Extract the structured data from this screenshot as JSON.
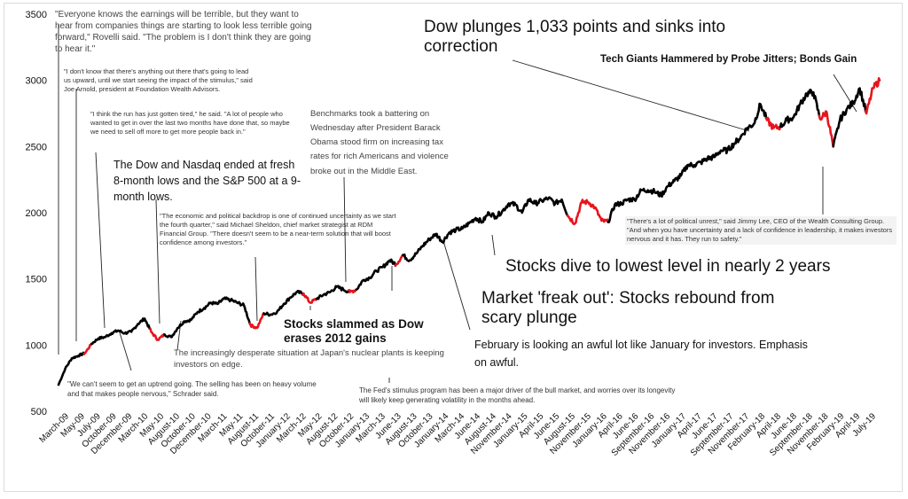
{
  "chart_data": {
    "type": "line",
    "title": "",
    "xlabel": "",
    "ylabel": "",
    "ylim": [
      500,
      3500
    ],
    "yticks": [
      500,
      1000,
      1500,
      2000,
      2500,
      3000,
      3500
    ],
    "x_tick_labels": [
      "March-09",
      "May-09",
      "July-09",
      "October-09",
      "December-09",
      "March-10",
      "May-10",
      "August-10",
      "October-10",
      "December-10",
      "March-11",
      "May-11",
      "August-11",
      "October-11",
      "January-12",
      "March-12",
      "May-12",
      "August-12",
      "October-12",
      "January-13",
      "March-13",
      "June-13",
      "August-13",
      "October-13",
      "January-14",
      "March-14",
      "June-14",
      "August-14",
      "November-14",
      "January-15",
      "April-15",
      "June-15",
      "August-15",
      "November-15",
      "January-16",
      "April-16",
      "June-16",
      "September-16",
      "November-16",
      "January-17",
      "April-17",
      "June-17",
      "September-17",
      "November-17",
      "February-18",
      "April-18",
      "June-18",
      "September-18",
      "November-18",
      "February-19",
      "April-19",
      "July-19"
    ],
    "series": [
      {
        "color": "#000000",
        "highlight_color": "#e8141c",
        "points": [
          [
            "2009-03",
            700
          ],
          [
            "2009-04",
            820
          ],
          [
            "2009-05",
            900
          ],
          [
            "2009-06",
            920
          ],
          [
            "2009-07",
            940
          ],
          [
            "2009-08",
            1010
          ],
          [
            "2009-09",
            1050
          ],
          [
            "2009-10",
            1060
          ],
          [
            "2009-11",
            1090
          ],
          [
            "2009-12",
            1110
          ],
          [
            "2010-01",
            1090
          ],
          [
            "2010-02",
            1100
          ],
          [
            "2010-03",
            1160
          ],
          [
            "2010-04",
            1200
          ],
          [
            "2010-05",
            1100
          ],
          [
            "2010-06",
            1040
          ],
          [
            "2010-07",
            1080
          ],
          [
            "2010-08",
            1060
          ],
          [
            "2010-09",
            1130
          ],
          [
            "2010-10",
            1180
          ],
          [
            "2010-11",
            1190
          ],
          [
            "2010-12",
            1250
          ],
          [
            "2011-01",
            1280
          ],
          [
            "2011-02",
            1320
          ],
          [
            "2011-03",
            1310
          ],
          [
            "2011-04",
            1350
          ],
          [
            "2011-05",
            1340
          ],
          [
            "2011-06",
            1320
          ],
          [
            "2011-07",
            1300
          ],
          [
            "2011-08",
            1150
          ],
          [
            "2011-09",
            1130
          ],
          [
            "2011-10",
            1240
          ],
          [
            "2011-11",
            1230
          ],
          [
            "2011-12",
            1250
          ],
          [
            "2012-01",
            1310
          ],
          [
            "2012-02",
            1360
          ],
          [
            "2012-03",
            1400
          ],
          [
            "2012-04",
            1390
          ],
          [
            "2012-05",
            1320
          ],
          [
            "2012-06",
            1350
          ],
          [
            "2012-07",
            1380
          ],
          [
            "2012-08",
            1400
          ],
          [
            "2012-09",
            1440
          ],
          [
            "2012-10",
            1420
          ],
          [
            "2012-11",
            1400
          ],
          [
            "2012-12",
            1420
          ],
          [
            "2013-01",
            1490
          ],
          [
            "2013-02",
            1510
          ],
          [
            "2013-03",
            1560
          ],
          [
            "2013-04",
            1590
          ],
          [
            "2013-05",
            1640
          ],
          [
            "2013-06",
            1610
          ],
          [
            "2013-07",
            1680
          ],
          [
            "2013-08",
            1640
          ],
          [
            "2013-09",
            1690
          ],
          [
            "2013-10",
            1750
          ],
          [
            "2013-11",
            1800
          ],
          [
            "2013-12",
            1840
          ],
          [
            "2014-01",
            1780
          ],
          [
            "2014-02",
            1850
          ],
          [
            "2014-03",
            1870
          ],
          [
            "2014-04",
            1880
          ],
          [
            "2014-05",
            1920
          ],
          [
            "2014-06",
            1960
          ],
          [
            "2014-07",
            1930
          ],
          [
            "2014-08",
            2000
          ],
          [
            "2014-09",
            1970
          ],
          [
            "2014-10",
            2010
          ],
          [
            "2014-11",
            2070
          ],
          [
            "2014-12",
            2060
          ],
          [
            "2015-01",
            2000
          ],
          [
            "2015-02",
            2100
          ],
          [
            "2015-03",
            2070
          ],
          [
            "2015-04",
            2090
          ],
          [
            "2015-05",
            2110
          ],
          [
            "2015-06",
            2070
          ],
          [
            "2015-07",
            2100
          ],
          [
            "2015-08",
            1970
          ],
          [
            "2015-09",
            1920
          ],
          [
            "2015-10",
            2080
          ],
          [
            "2015-11",
            2080
          ],
          [
            "2015-12",
            2040
          ],
          [
            "2016-01",
            1940
          ],
          [
            "2016-02",
            1930
          ],
          [
            "2016-03",
            2060
          ],
          [
            "2016-04",
            2070
          ],
          [
            "2016-05",
            2100
          ],
          [
            "2016-06",
            2100
          ],
          [
            "2016-07",
            2170
          ],
          [
            "2016-08",
            2170
          ],
          [
            "2016-09",
            2160
          ],
          [
            "2016-10",
            2130
          ],
          [
            "2016-11",
            2200
          ],
          [
            "2016-12",
            2240
          ],
          [
            "2017-01",
            2280
          ],
          [
            "2017-02",
            2360
          ],
          [
            "2017-03",
            2360
          ],
          [
            "2017-04",
            2380
          ],
          [
            "2017-05",
            2410
          ],
          [
            "2017-06",
            2420
          ],
          [
            "2017-07",
            2470
          ],
          [
            "2017-08",
            2470
          ],
          [
            "2017-09",
            2520
          ],
          [
            "2017-10",
            2570
          ],
          [
            "2017-11",
            2640
          ],
          [
            "2017-12",
            2670
          ],
          [
            "2018-01",
            2820
          ],
          [
            "2018-02",
            2700
          ],
          [
            "2018-03",
            2640
          ],
          [
            "2018-04",
            2650
          ],
          [
            "2018-05",
            2700
          ],
          [
            "2018-06",
            2720
          ],
          [
            "2018-07",
            2820
          ],
          [
            "2018-08",
            2900
          ],
          [
            "2018-09",
            2910
          ],
          [
            "2018-10",
            2710
          ],
          [
            "2018-11",
            2760
          ],
          [
            "2018-12",
            2500
          ],
          [
            "2019-01",
            2700
          ],
          [
            "2019-02",
            2780
          ],
          [
            "2019-03",
            2830
          ],
          [
            "2019-04",
            2940
          ],
          [
            "2019-05",
            2750
          ],
          [
            "2019-06",
            2940
          ],
          [
            "2019-07",
            3000
          ]
        ],
        "highlight_ranges": [
          [
            "2009-07",
            "2009-08"
          ],
          [
            "2010-05",
            "2010-07"
          ],
          [
            "2011-08",
            "2011-10"
          ],
          [
            "2012-04",
            "2012-06"
          ],
          [
            "2012-11",
            "2012-12"
          ],
          [
            "2013-06",
            "2013-07"
          ],
          [
            "2015-08",
            "2016-02"
          ],
          [
            "2018-02",
            "2018-04"
          ],
          [
            "2018-10",
            "2018-12"
          ],
          [
            "2019-05",
            "2019-07"
          ]
        ]
      }
    ]
  },
  "annotations": [
    {
      "id": "everyone-knows",
      "text": "\"Everyone knows the earnings will be terrible, but they want to hear from companies things are starting to look less terrible going forward,\" Rovelli said. \"The problem is I don't think they are going to hear it.\""
    },
    {
      "id": "dont-know",
      "text": "\"I don't know that there's anything out there that's going to lead us upward, until we start seeing the impact of the stimulus,\" said Joe Arnold, president at Foundation Wealth Advisors."
    },
    {
      "id": "run-tired",
      "text": "\"I think the run has just gotten tired,\" he said. \"A lot of people who wanted to get in over the last two months have done that, so maybe we need to sell off more to get more people back in.\""
    },
    {
      "id": "dow-nasdaq",
      "text": "The Dow and Nasdaq ended at fresh 8-month lows and the S&P 500 at a 9-month lows."
    },
    {
      "id": "benchmarks",
      "text": "Benchmarks took a battering on Wednesday after President Barack Obama stood firm on increasing tax rates for rich Americans and violence broke out in the Middle East."
    },
    {
      "id": "dow-plunges",
      "text": "Dow plunges 1,033 points and sinks into correction"
    },
    {
      "id": "tech-giants",
      "text": "Tech Giants Hammered by Probe Jitters; Bonds Gain"
    },
    {
      "id": "economic-backdrop",
      "text": "\"The economic and political backdrop is one of continued uncertainty as we start the fourth quarter,\" said Michael Sheldon, chief market strategist at RDM Financial Group. \"There doesn't seem to be a near-term solution that will boost confidence among investors.\""
    },
    {
      "id": "political-unrest",
      "text": "\"There's a lot of political unrest,\" said Jimmy Lee, CEO of the Wealth Consulting Group. \"And when you have uncertainty and a lack of confidence in leadership, it makes investors nervous and it has. They run to safety.\""
    },
    {
      "id": "stocks-dive",
      "text": "Stocks dive to lowest level in nearly 2 years"
    },
    {
      "id": "freak-out",
      "text": "Market 'freak out': Stocks rebound from scary plunge"
    },
    {
      "id": "stocks-slammed",
      "text": "Stocks slammed as Dow erases 2012 gains"
    },
    {
      "id": "february",
      "text": "February is looking an awful lot like January for investors. Emphasis on awful."
    },
    {
      "id": "japan",
      "text": "The increasingly desperate situation at Japan's nuclear plants is keeping investors on edge."
    },
    {
      "id": "uptrend",
      "text": "\"We can't seem to get an uptrend going. The selling has been on heavy volume and that makes people nervous,\" Schrader said."
    },
    {
      "id": "fed-stimulus",
      "text": "The Fed's stimulus program has been a major driver of the bull market, and worries over its longevity will likely keep generating volatility in the months ahead."
    }
  ]
}
